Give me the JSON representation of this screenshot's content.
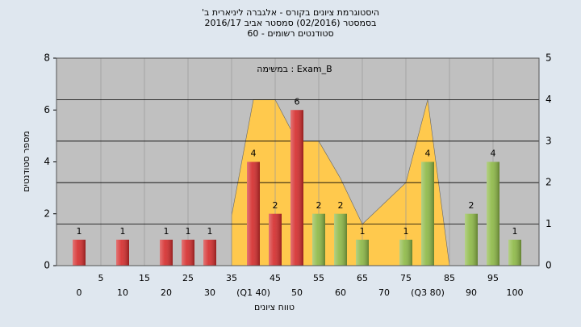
{
  "chart_data": {
    "type": "bar",
    "title": "היסטוגרמת ציונים בקורס - אלגברה ליניארית ב'",
    "subtitle": "בסמסטר (02/2016) סמסטר אביב 2016/17",
    "subtitle2": "סטודנטים רשומים - 60",
    "annotation": "במשימה : Exam_B",
    "y_label": "מספר סטודנטים",
    "x_label": "טווח ציונים",
    "categories": [
      "0",
      "5",
      "10",
      "15",
      "20",
      "25",
      "30",
      "35",
      "(Q1 40)",
      "45",
      "50",
      "55",
      "60",
      "65",
      "70",
      "75",
      "(Q3 80)",
      "85",
      "90",
      "95",
      "100"
    ],
    "values": [
      1,
      0,
      1,
      0,
      1,
      1,
      1,
      0,
      4,
      2,
      6,
      2,
      2,
      1,
      0,
      1,
      4,
      0,
      2,
      4,
      1
    ],
    "colors": [
      "#d42a2a",
      "#d42a2a",
      "#d42a2a",
      "#d42a2a",
      "#d42a2a",
      "#d42a2a",
      "#d42a2a",
      "#d42a2a",
      "#d42a2a",
      "#d42a2a",
      "#d42a2a",
      "#8cb844",
      "#8cb844",
      "#8cb844",
      "#8cb844",
      "#8cb844",
      "#8cb844",
      "#8cb844",
      "#8cb844",
      "#8cb844",
      "#8cb844"
    ],
    "area": {
      "color": "#ffc94d",
      "axis": "y2",
      "values": [
        null,
        null,
        null,
        null,
        null,
        null,
        null,
        1.2,
        4,
        4,
        3,
        3,
        2.1,
        1,
        1.5,
        2,
        4,
        0,
        null,
        null,
        null
      ]
    },
    "ylim": [
      0,
      8
    ],
    "yticks": [
      0,
      2,
      4,
      6,
      8
    ],
    "y2lim": [
      0,
      5
    ],
    "y2ticks": [
      0,
      1,
      2,
      3,
      4,
      5
    ],
    "grid": true
  }
}
